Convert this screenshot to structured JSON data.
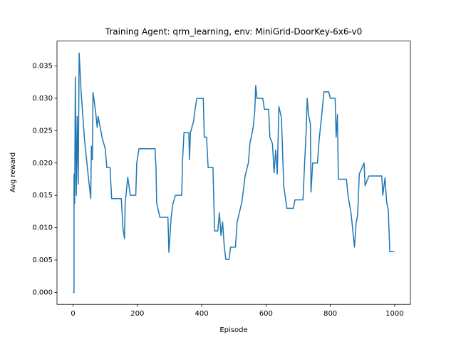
{
  "chart_data": {
    "type": "line",
    "title": "Training Agent: qrm_learning, env: MiniGrid-DoorKey-6x6-v0",
    "x_label": "Episode",
    "y_label": "Avg reward",
    "color": "#1f77b4",
    "x": [
      0,
      3,
      3,
      5,
      7,
      10,
      13,
      16,
      19,
      25,
      35,
      45,
      55,
      57,
      60,
      62,
      70,
      75,
      78,
      90,
      100,
      105,
      115,
      120,
      150,
      155,
      160,
      162,
      170,
      178,
      195,
      198,
      205,
      255,
      258,
      260,
      270,
      295,
      298,
      305,
      310,
      318,
      338,
      340,
      345,
      360,
      362,
      365,
      375,
      380,
      385,
      405,
      408,
      415,
      420,
      435,
      440,
      450,
      455,
      460,
      465,
      470,
      475,
      485,
      490,
      505,
      510,
      525,
      535,
      545,
      550,
      560,
      565,
      568,
      572,
      590,
      595,
      608,
      612,
      620,
      625,
      630,
      635,
      640,
      648,
      655,
      665,
      685,
      690,
      715,
      720,
      725,
      728,
      732,
      738,
      740,
      745,
      760,
      765,
      775,
      780,
      795,
      800,
      815,
      818,
      822,
      825,
      850,
      855,
      865,
      870,
      875,
      880,
      885,
      890,
      905,
      908,
      920,
      960,
      963,
      970,
      975,
      980,
      985,
      999
    ],
    "values": [
      0,
      0,
      0.0183,
      0.0138,
      0.0333,
      0.015,
      0.0272,
      0.0167,
      0.037,
      0.031,
      0.024,
      0.019,
      0.0145,
      0.0226,
      0.0205,
      0.0309,
      0.028,
      0.0255,
      0.0272,
      0.024,
      0.0222,
      0.0193,
      0.0193,
      0.0145,
      0.0145,
      0.01,
      0.0083,
      0.0137,
      0.0178,
      0.015,
      0.015,
      0.02,
      0.0222,
      0.0222,
      0.019,
      0.0138,
      0.0116,
      0.0116,
      0.0062,
      0.0116,
      0.0136,
      0.015,
      0.015,
      0.02,
      0.0247,
      0.0247,
      0.0205,
      0.0247,
      0.0265,
      0.0285,
      0.03,
      0.03,
      0.024,
      0.024,
      0.0193,
      0.0193,
      0.0095,
      0.0095,
      0.0123,
      0.0088,
      0.0109,
      0.0072,
      0.0051,
      0.0051,
      0.007,
      0.007,
      0.0108,
      0.014,
      0.018,
      0.02,
      0.023,
      0.0255,
      0.028,
      0.032,
      0.03,
      0.03,
      0.0283,
      0.0283,
      0.024,
      0.023,
      0.0185,
      0.022,
      0.0183,
      0.0287,
      0.027,
      0.0165,
      0.013,
      0.013,
      0.0143,
      0.0143,
      0.02,
      0.025,
      0.03,
      0.0275,
      0.026,
      0.0155,
      0.02,
      0.02,
      0.0235,
      0.0283,
      0.031,
      0.031,
      0.03,
      0.03,
      0.024,
      0.0275,
      0.0175,
      0.0175,
      0.015,
      0.012,
      0.0095,
      0.007,
      0.0107,
      0.012,
      0.0183,
      0.02,
      0.0165,
      0.018,
      0.018,
      0.015,
      0.0177,
      0.014,
      0.0128,
      0.0063,
      0.0063
    ],
    "xlim": [
      -49.95,
      1048.95
    ],
    "ylim": [
      -0.00185,
      0.03885
    ],
    "xticks": [
      0,
      200,
      400,
      600,
      800,
      1000
    ],
    "yticks": [
      {
        "value": 0,
        "label": "0.000"
      },
      {
        "value": 0.005,
        "label": "0.005"
      },
      {
        "value": 0.01,
        "label": "0.010"
      },
      {
        "value": 0.015,
        "label": "0.015"
      },
      {
        "value": 0.02,
        "label": "0.020"
      },
      {
        "value": 0.025,
        "label": "0.025"
      },
      {
        "value": 0.03,
        "label": "0.030"
      },
      {
        "value": 0.035,
        "label": "0.035"
      }
    ]
  }
}
